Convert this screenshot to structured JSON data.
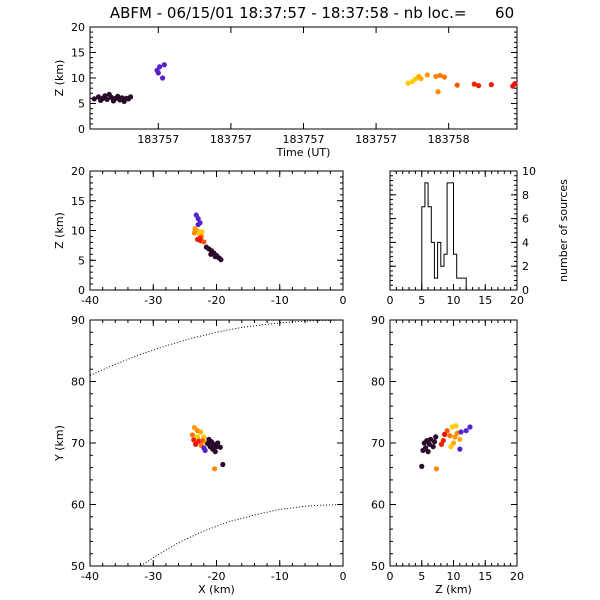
{
  "title": "ABFM - 06/15/01 18:37:57 - 18:37:58 - nb loc.=      60",
  "chart_data": [
    {
      "id": "time-height",
      "type": "scatter",
      "xlabel": "Time (UT)",
      "ylabel": "Z (km)",
      "xlim": [
        0,
        1
      ],
      "ylim": [
        0,
        20
      ],
      "xticks": [
        0.16,
        0.33,
        0.5,
        0.67,
        0.84
      ],
      "xticklabels": [
        "183757",
        "183757",
        "183757",
        "183757",
        "183758"
      ],
      "yticks": [
        0,
        5,
        10,
        15,
        20
      ],
      "points": [
        {
          "x": 0.01,
          "y": 5.9,
          "color": "#2a0a2a"
        },
        {
          "x": 0.02,
          "y": 6.3,
          "color": "#2a0a2a"
        },
        {
          "x": 0.025,
          "y": 5.6,
          "color": "#2a0a2a"
        },
        {
          "x": 0.03,
          "y": 6.0,
          "color": "#2a0a2a"
        },
        {
          "x": 0.035,
          "y": 6.5,
          "color": "#2a0a2a"
        },
        {
          "x": 0.04,
          "y": 5.8,
          "color": "#2a0a2a"
        },
        {
          "x": 0.045,
          "y": 6.8,
          "color": "#2a0a2a"
        },
        {
          "x": 0.05,
          "y": 6.2,
          "color": "#2a0a2a"
        },
        {
          "x": 0.055,
          "y": 5.5,
          "color": "#2a0a2a"
        },
        {
          "x": 0.06,
          "y": 6.0,
          "color": "#2a0a2a"
        },
        {
          "x": 0.065,
          "y": 6.4,
          "color": "#2a0a2a"
        },
        {
          "x": 0.07,
          "y": 5.7,
          "color": "#2a0a2a"
        },
        {
          "x": 0.075,
          "y": 6.1,
          "color": "#2a0a2a"
        },
        {
          "x": 0.08,
          "y": 5.4,
          "color": "#2a0a2a"
        },
        {
          "x": 0.085,
          "y": 6.0,
          "color": "#2a0a2a"
        },
        {
          "x": 0.09,
          "y": 5.9,
          "color": "#2a0a2a"
        },
        {
          "x": 0.095,
          "y": 6.3,
          "color": "#2a0a2a"
        },
        {
          "x": 0.157,
          "y": 11.5,
          "color": "#5522cc"
        },
        {
          "x": 0.16,
          "y": 11.0,
          "color": "#5522cc"
        },
        {
          "x": 0.163,
          "y": 12.2,
          "color": "#5522cc"
        },
        {
          "x": 0.17,
          "y": 10.0,
          "color": "#5522cc"
        },
        {
          "x": 0.174,
          "y": 12.6,
          "color": "#5522cc"
        },
        {
          "x": 0.745,
          "y": 9.0,
          "color": "#ffcc00"
        },
        {
          "x": 0.755,
          "y": 9.3,
          "color": "#ffcc00"
        },
        {
          "x": 0.762,
          "y": 9.8,
          "color": "#ffcc00"
        },
        {
          "x": 0.77,
          "y": 10.3,
          "color": "#ffaa00"
        },
        {
          "x": 0.775,
          "y": 9.9,
          "color": "#ffaa00"
        },
        {
          "x": 0.79,
          "y": 10.6,
          "color": "#ff9900"
        },
        {
          "x": 0.81,
          "y": 10.3,
          "color": "#ff8800"
        },
        {
          "x": 0.815,
          "y": 7.3,
          "color": "#ff8800"
        },
        {
          "x": 0.82,
          "y": 10.5,
          "color": "#ff7700"
        },
        {
          "x": 0.83,
          "y": 10.2,
          "color": "#ff7700"
        },
        {
          "x": 0.86,
          "y": 8.6,
          "color": "#ff5500"
        },
        {
          "x": 0.9,
          "y": 8.8,
          "color": "#ee2200"
        },
        {
          "x": 0.91,
          "y": 8.5,
          "color": "#ee2200"
        },
        {
          "x": 0.94,
          "y": 8.7,
          "color": "#ee2200"
        },
        {
          "x": 0.99,
          "y": 8.4,
          "color": "#ee1111"
        },
        {
          "x": 0.995,
          "y": 8.9,
          "color": "#ee1111"
        }
      ]
    },
    {
      "id": "x-z",
      "type": "scatter",
      "xlabel": "",
      "ylabel": "Z (km)",
      "xlim": [
        -40,
        0
      ],
      "ylim": [
        0,
        20
      ],
      "xticks": [
        -40,
        -30,
        -20,
        -10,
        0
      ],
      "yticks": [
        0,
        5,
        10,
        15,
        20
      ],
      "points": [
        {
          "x": -23.2,
          "y": 12.6,
          "color": "#5522cc"
        },
        {
          "x": -22.9,
          "y": 12.0,
          "color": "#5522cc"
        },
        {
          "x": -22.6,
          "y": 11.3,
          "color": "#5522cc"
        },
        {
          "x": -22.9,
          "y": 11.0,
          "color": "#5522cc"
        },
        {
          "x": -23.4,
          "y": 10.3,
          "color": "#ff9900"
        },
        {
          "x": -23.1,
          "y": 10.0,
          "color": "#ffaa00"
        },
        {
          "x": -23.5,
          "y": 9.6,
          "color": "#ff8800"
        },
        {
          "x": -22.7,
          "y": 9.4,
          "color": "#ffcc00"
        },
        {
          "x": -22.3,
          "y": 9.8,
          "color": "#ffcc00"
        },
        {
          "x": -22.4,
          "y": 9.0,
          "color": "#ff7700"
        },
        {
          "x": -22.6,
          "y": 8.7,
          "color": "#ee2200"
        },
        {
          "x": -23.0,
          "y": 8.5,
          "color": "#ee2200"
        },
        {
          "x": -22.5,
          "y": 8.3,
          "color": "#ee1111"
        },
        {
          "x": -22.0,
          "y": 8.1,
          "color": "#ff5500"
        },
        {
          "x": -21.6,
          "y": 7.2,
          "color": "#2a0a2a"
        },
        {
          "x": -21.2,
          "y": 6.9,
          "color": "#2a0a2a"
        },
        {
          "x": -20.8,
          "y": 6.6,
          "color": "#2a0a2a"
        },
        {
          "x": -20.4,
          "y": 6.2,
          "color": "#2a0a2a"
        },
        {
          "x": -20.0,
          "y": 5.8,
          "color": "#2a0a2a"
        },
        {
          "x": -19.6,
          "y": 5.4,
          "color": "#2a0a2a"
        },
        {
          "x": -19.3,
          "y": 5.1,
          "color": "#2a0a2a"
        },
        {
          "x": -20.9,
          "y": 6.0,
          "color": "#2a0a2a"
        },
        {
          "x": -20.2,
          "y": 5.6,
          "color": "#2a0a2a"
        }
      ]
    },
    {
      "id": "altitude-histogram",
      "type": "bar",
      "xlabel": "",
      "ylabel": "number of sources",
      "xlim": [
        0,
        20
      ],
      "ylim": [
        0,
        10
      ],
      "xticks": [
        0,
        5,
        10,
        15,
        20
      ],
      "yticks": [
        0,
        2,
        4,
        6,
        8,
        10
      ],
      "bin_edges": [
        0,
        0.5,
        1,
        1.5,
        2,
        2.5,
        3,
        3.5,
        4,
        4.5,
        5,
        5.5,
        6,
        6.5,
        7,
        7.5,
        8,
        8.5,
        9,
        9.5,
        10,
        10.5,
        11,
        11.5,
        12,
        12.5,
        13,
        13.5,
        14,
        14.5,
        15,
        15.5,
        16,
        16.5,
        17,
        17.5,
        18,
        18.5,
        19,
        19.5,
        20
      ],
      "values": [
        0,
        0,
        0,
        0,
        0,
        0,
        0,
        0,
        0,
        0,
        7,
        9,
        7,
        4,
        1,
        4,
        2,
        3,
        9,
        9,
        3,
        1,
        1,
        1,
        0,
        0,
        0,
        0,
        0,
        0,
        0,
        0,
        0,
        0,
        0,
        0,
        0,
        0,
        0,
        0
      ]
    },
    {
      "id": "x-y",
      "type": "scatter",
      "xlabel": "X (km)",
      "ylabel": "Y (km)",
      "xlim": [
        -40,
        0
      ],
      "ylim": [
        50,
        90
      ],
      "xticks": [
        -40,
        -30,
        -20,
        -10,
        0
      ],
      "yticks": [
        50,
        60,
        70,
        80,
        90
      ],
      "points": [
        {
          "x": -23.5,
          "y": 72.5,
          "color": "#ff9900"
        },
        {
          "x": -23.0,
          "y": 72.0,
          "color": "#ff8800"
        },
        {
          "x": -22.5,
          "y": 71.8,
          "color": "#ffaa00"
        },
        {
          "x": -23.8,
          "y": 71.3,
          "color": "#ff7700"
        },
        {
          "x": -23.0,
          "y": 71.0,
          "color": "#ffcc00"
        },
        {
          "x": -22.0,
          "y": 71.0,
          "color": "#ffcc00"
        },
        {
          "x": -23.6,
          "y": 70.5,
          "color": "#ee2200"
        },
        {
          "x": -22.8,
          "y": 70.3,
          "color": "#ee2200"
        },
        {
          "x": -22.2,
          "y": 70.4,
          "color": "#ff5500"
        },
        {
          "x": -23.3,
          "y": 69.8,
          "color": "#ee1111"
        },
        {
          "x": -22.4,
          "y": 69.6,
          "color": "#ff7700"
        },
        {
          "x": -21.6,
          "y": 70.0,
          "color": "#ffaa00"
        },
        {
          "x": -22.0,
          "y": 69.2,
          "color": "#5522cc"
        },
        {
          "x": -21.8,
          "y": 68.8,
          "color": "#5522cc"
        },
        {
          "x": -21.2,
          "y": 70.6,
          "color": "#2a0a2a"
        },
        {
          "x": -20.8,
          "y": 70.2,
          "color": "#2a0a2a"
        },
        {
          "x": -20.4,
          "y": 69.8,
          "color": "#2a0a2a"
        },
        {
          "x": -20.0,
          "y": 69.4,
          "color": "#2a0a2a"
        },
        {
          "x": -21.0,
          "y": 69.4,
          "color": "#2a0a2a"
        },
        {
          "x": -20.6,
          "y": 69.0,
          "color": "#2a0a2a"
        },
        {
          "x": -20.2,
          "y": 68.6,
          "color": "#2a0a2a"
        },
        {
          "x": -19.8,
          "y": 70.0,
          "color": "#2a0a2a"
        },
        {
          "x": -19.4,
          "y": 69.3,
          "color": "#2a0a2a"
        },
        {
          "x": -21.4,
          "y": 69.9,
          "color": "#2a0a2a"
        },
        {
          "x": -19.0,
          "y": 66.5,
          "color": "#2a0a2a"
        },
        {
          "x": -20.3,
          "y": 65.8,
          "color": "#ff8800"
        }
      ],
      "boundary_arcs": [
        [
          [
            -40,
            81.0
          ],
          [
            -36,
            82.8
          ],
          [
            -32,
            84.4
          ],
          [
            -28,
            85.8
          ],
          [
            -24,
            87.0
          ],
          [
            -20,
            88.0
          ],
          [
            -16,
            88.8
          ],
          [
            -12,
            89.3
          ],
          [
            -8,
            89.7
          ],
          [
            -4,
            89.9
          ],
          [
            0,
            90.0
          ]
        ],
        [
          [
            -32,
            50.0
          ],
          [
            -29,
            52.0
          ],
          [
            -26,
            53.8
          ],
          [
            -22,
            55.7
          ],
          [
            -18,
            57.2
          ],
          [
            -14,
            58.3
          ],
          [
            -10,
            59.2
          ],
          [
            -6,
            59.7
          ],
          [
            -3,
            59.9
          ],
          [
            0,
            60.0
          ]
        ]
      ]
    },
    {
      "id": "z-y",
      "type": "scatter",
      "xlabel": "Z (km)",
      "ylabel": "",
      "xlim": [
        0,
        20
      ],
      "ylim": [
        50,
        90
      ],
      "xticks": [
        0,
        5,
        10,
        15,
        20
      ],
      "yticks": [
        50,
        60,
        70,
        80,
        90
      ],
      "points": [
        {
          "x": 5.4,
          "y": 70.0,
          "color": "#2a0a2a"
        },
        {
          "x": 5.8,
          "y": 70.4,
          "color": "#2a0a2a"
        },
        {
          "x": 6.2,
          "y": 69.8,
          "color": "#2a0a2a"
        },
        {
          "x": 5.6,
          "y": 69.2,
          "color": "#2a0a2a"
        },
        {
          "x": 6.4,
          "y": 70.6,
          "color": "#2a0a2a"
        },
        {
          "x": 6.8,
          "y": 69.4,
          "color": "#2a0a2a"
        },
        {
          "x": 5.2,
          "y": 68.8,
          "color": "#2a0a2a"
        },
        {
          "x": 7.0,
          "y": 70.2,
          "color": "#2a0a2a"
        },
        {
          "x": 6.0,
          "y": 68.6,
          "color": "#2a0a2a"
        },
        {
          "x": 7.2,
          "y": 71.0,
          "color": "#2a0a2a"
        },
        {
          "x": 5.0,
          "y": 66.2,
          "color": "#2a0a2a"
        },
        {
          "x": 7.3,
          "y": 65.8,
          "color": "#ff8800"
        },
        {
          "x": 8.4,
          "y": 70.4,
          "color": "#ee2200"
        },
        {
          "x": 8.6,
          "y": 71.4,
          "color": "#ee1111"
        },
        {
          "x": 8.1,
          "y": 69.8,
          "color": "#ee2200"
        },
        {
          "x": 9.0,
          "y": 72.0,
          "color": "#ff5500"
        },
        {
          "x": 9.4,
          "y": 71.2,
          "color": "#ff7700"
        },
        {
          "x": 9.8,
          "y": 72.6,
          "color": "#ffcc00"
        },
        {
          "x": 10.2,
          "y": 71.0,
          "color": "#ff9900"
        },
        {
          "x": 10.4,
          "y": 72.8,
          "color": "#ffcc00"
        },
        {
          "x": 10.0,
          "y": 70.0,
          "color": "#ffaa00"
        },
        {
          "x": 10.6,
          "y": 71.6,
          "color": "#ff8800"
        },
        {
          "x": 11.0,
          "y": 70.6,
          "color": "#ffaa00"
        },
        {
          "x": 9.6,
          "y": 69.4,
          "color": "#ffcc00"
        },
        {
          "x": 11.2,
          "y": 71.8,
          "color": "#5522cc"
        },
        {
          "x": 12.0,
          "y": 72.0,
          "color": "#5522cc"
        },
        {
          "x": 12.6,
          "y": 72.6,
          "color": "#5522cc"
        },
        {
          "x": 11.0,
          "y": 69.0,
          "color": "#5522cc"
        }
      ]
    }
  ]
}
